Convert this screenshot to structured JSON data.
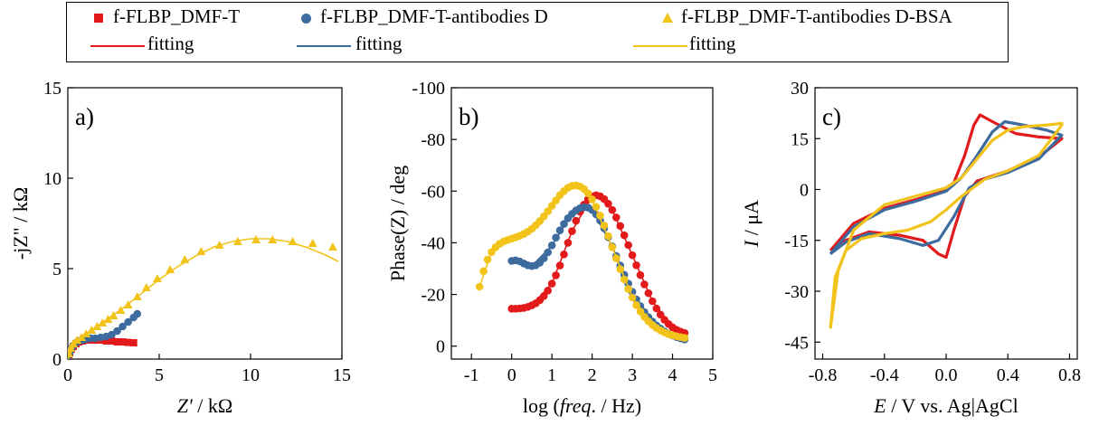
{
  "legend": {
    "entries": [
      {
        "label": "f-FLBP_DMF-T",
        "marker": "square",
        "color": "#e31a1c"
      },
      {
        "label": "f-FLBP_DMF-T-antibodies D",
        "marker": "circle",
        "color": "#3d6b9e"
      },
      {
        "label": "f-FLBP_DMF-T-antibodies D-BSA",
        "marker": "triangle",
        "color": "#f2c41b"
      }
    ],
    "fit_label": "fitting"
  },
  "colors": {
    "red": "#e31a1c",
    "blue": "#3d6b9e",
    "yellow": "#f2c41b"
  },
  "chart_data": [
    {
      "type": "scatter",
      "panel": "a)",
      "xlabel": "Z' / kΩ",
      "ylabel": "-jZ\" / kΩ",
      "xlim": [
        0,
        15
      ],
      "ylim": [
        0,
        15
      ],
      "xticks": [
        "0",
        "5",
        "10",
        "15"
      ],
      "yticks": [
        "0",
        "5",
        "10",
        "15"
      ],
      "series": [
        {
          "name": "f-FLBP_DMF-T",
          "color": "red",
          "marker": "square",
          "x": [
            0.05,
            0.1,
            0.2,
            0.3,
            0.45,
            0.6,
            0.8,
            1.0,
            1.25,
            1.5,
            1.8,
            2.1,
            2.4,
            2.7,
            3.0,
            3.3,
            3.6
          ],
          "y": [
            0.15,
            0.35,
            0.55,
            0.7,
            0.85,
            0.95,
            1.0,
            1.05,
            1.05,
            1.05,
            1.05,
            1.0,
            1.0,
            0.95,
            0.95,
            0.92,
            0.9
          ],
          "fit_x": [
            0,
            0.3,
            0.6,
            1.0,
            1.5,
            2.0,
            2.5,
            3.0,
            3.6
          ],
          "fit_y": [
            0,
            0.7,
            0.95,
            1.05,
            1.05,
            1.0,
            0.97,
            0.93,
            0.9
          ]
        },
        {
          "name": "f-FLBP_DMF-T-antibodies D",
          "color": "blue",
          "marker": "circle",
          "x": [
            0.05,
            0.12,
            0.2,
            0.3,
            0.45,
            0.6,
            0.8,
            1.0,
            1.25,
            1.5,
            1.8,
            2.1,
            2.4,
            2.7,
            3.0,
            3.3,
            3.6,
            3.8
          ],
          "y": [
            0.2,
            0.4,
            0.6,
            0.75,
            0.9,
            1.0,
            1.05,
            1.1,
            1.15,
            1.15,
            1.2,
            1.25,
            1.35,
            1.55,
            1.8,
            2.05,
            2.3,
            2.5
          ],
          "fit_x": [
            0,
            0.3,
            0.8,
            1.5,
            2.1,
            2.7,
            3.3,
            3.8
          ],
          "fit_y": [
            0,
            0.75,
            1.05,
            1.15,
            1.25,
            1.55,
            2.05,
            2.5
          ]
        },
        {
          "name": "f-FLBP_DMF-T-antibodies D-BSA",
          "color": "yellow",
          "marker": "triangle",
          "x": [
            0.05,
            0.15,
            0.3,
            0.5,
            0.75,
            1.0,
            1.3,
            1.6,
            1.9,
            2.2,
            2.5,
            2.9,
            3.3,
            3.8,
            4.3,
            4.9,
            5.6,
            6.4,
            7.3,
            8.3,
            9.3,
            10.3,
            11.2,
            12.3,
            13.4,
            14.5
          ],
          "y": [
            0.3,
            0.6,
            0.85,
            1.05,
            1.2,
            1.4,
            1.6,
            1.8,
            2.0,
            2.2,
            2.4,
            2.7,
            3.0,
            3.45,
            3.95,
            4.45,
            4.95,
            5.5,
            5.95,
            6.3,
            6.5,
            6.6,
            6.6,
            6.5,
            6.4,
            6.2
          ],
          "fit_x": [
            0,
            0.5,
            1.0,
            2.0,
            3.0,
            4.0,
            5.0,
            6.0,
            7.0,
            8.0,
            9.0,
            10.0,
            11.0,
            12.0,
            13.0,
            14.0,
            14.8
          ],
          "fit_y": [
            0,
            1.0,
            1.4,
            2.1,
            2.8,
            3.6,
            4.4,
            5.1,
            5.7,
            6.2,
            6.5,
            6.65,
            6.65,
            6.5,
            6.2,
            5.8,
            5.4
          ]
        }
      ]
    },
    {
      "type": "scatter",
      "panel": "b)",
      "xlabel_parts": [
        "log (",
        "freq",
        ". / Hz)"
      ],
      "ylabel": "Phase(Z) / deg",
      "xlim": [
        -1.5,
        5
      ],
      "ylim": [
        5,
        -100
      ],
      "xticks": [
        "-1",
        "0",
        "1",
        "2",
        "3",
        "4",
        "5"
      ],
      "yticks": [
        "0",
        "-20",
        "-40",
        "-60",
        "-80",
        "-100"
      ],
      "series": [
        {
          "name": "f-FLBP_DMF-T",
          "color": "red",
          "marker": "circle",
          "x": [
            0.0,
            0.1,
            0.2,
            0.3,
            0.4,
            0.5,
            0.6,
            0.7,
            0.8,
            0.9,
            1.0,
            1.1,
            1.2,
            1.3,
            1.4,
            1.5,
            1.6,
            1.7,
            1.8,
            1.9,
            2.0,
            2.1,
            2.2,
            2.3,
            2.4,
            2.5,
            2.6,
            2.7,
            2.8,
            2.9,
            3.0,
            3.1,
            3.2,
            3.3,
            3.4,
            3.5,
            3.6,
            3.7,
            3.8,
            3.9,
            4.0,
            4.1,
            4.2,
            4.3
          ],
          "y": [
            -14.5,
            -14.5,
            -14.6,
            -14.8,
            -15.2,
            -15.8,
            -16.6,
            -17.8,
            -19.4,
            -21.5,
            -24.2,
            -27.4,
            -31.2,
            -35.5,
            -40.0,
            -44.5,
            -48.5,
            -52.0,
            -54.8,
            -56.8,
            -58.0,
            -58.4,
            -58.0,
            -56.9,
            -55.1,
            -52.7,
            -49.8,
            -46.5,
            -42.9,
            -39.1,
            -35.2,
            -31.3,
            -27.5,
            -23.9,
            -20.5,
            -17.4,
            -14.6,
            -12.2,
            -10.2,
            -8.6,
            -7.3,
            -6.3,
            -5.6,
            -5.1
          ],
          "fit_x": [
            0.0,
            0.5,
            1.0,
            1.5,
            2.0,
            2.2,
            2.5,
            3.0,
            3.5,
            4.0,
            4.3
          ],
          "fit_y": [
            -14.5,
            -15.8,
            -24.2,
            -44.5,
            -58.0,
            -58.4,
            -52.7,
            -35.2,
            -17.4,
            -7.3,
            -5.1
          ]
        },
        {
          "name": "f-FLBP_DMF-T-antibodies D",
          "color": "blue",
          "marker": "circle",
          "x": [
            0.0,
            0.1,
            0.2,
            0.3,
            0.4,
            0.5,
            0.6,
            0.7,
            0.8,
            0.9,
            1.0,
            1.1,
            1.2,
            1.3,
            1.4,
            1.5,
            1.6,
            1.7,
            1.8,
            1.9,
            2.0,
            2.1,
            2.2,
            2.3,
            2.4,
            2.5,
            2.6,
            2.7,
            2.8,
            2.9,
            3.0,
            3.1,
            3.2,
            3.3,
            3.4,
            3.5,
            3.6,
            3.7,
            3.8,
            3.9,
            4.0,
            4.1,
            4.2,
            4.3
          ],
          "y": [
            -33.0,
            -33.2,
            -32.8,
            -32.0,
            -31.3,
            -31.0,
            -31.3,
            -32.3,
            -34.0,
            -36.3,
            -39.0,
            -42.0,
            -44.8,
            -47.3,
            -49.5,
            -51.2,
            -52.5,
            -53.4,
            -53.8,
            -53.6,
            -52.7,
            -51.0,
            -48.6,
            -45.6,
            -42.2,
            -38.6,
            -34.9,
            -31.2,
            -27.6,
            -24.2,
            -21.0,
            -18.1,
            -15.5,
            -13.2,
            -11.2,
            -9.5,
            -8.0,
            -6.8,
            -5.7,
            -4.8,
            -4.1,
            -3.5,
            -3.0,
            -2.6
          ],
          "fit_x": [
            0.0,
            0.5,
            1.0,
            1.5,
            1.8,
            2.0,
            2.5,
            3.0,
            3.5,
            4.0,
            4.3
          ],
          "fit_y": [
            -33.0,
            -31.0,
            -39.0,
            -51.2,
            -53.8,
            -52.7,
            -38.6,
            -21.0,
            -9.5,
            -4.1,
            -2.6
          ]
        },
        {
          "name": "f-FLBP_DMF-T-antibodies D-BSA",
          "color": "yellow",
          "marker": "circle",
          "x": [
            -0.8,
            -0.7,
            -0.6,
            -0.5,
            -0.4,
            -0.3,
            -0.2,
            -0.1,
            0.0,
            0.1,
            0.2,
            0.3,
            0.4,
            0.5,
            0.6,
            0.7,
            0.8,
            0.9,
            1.0,
            1.1,
            1.2,
            1.3,
            1.4,
            1.5,
            1.6,
            1.7,
            1.8,
            1.9,
            2.0,
            2.1,
            2.2,
            2.3,
            2.4,
            2.5,
            2.6,
            2.7,
            2.8,
            2.9,
            3.0,
            3.1,
            3.2,
            3.3,
            3.4,
            3.5,
            3.6,
            3.7,
            3.8,
            3.9,
            4.0,
            4.1,
            4.2,
            4.3
          ],
          "y": [
            -23.0,
            -29.0,
            -33.5,
            -36.4,
            -38.3,
            -39.6,
            -40.5,
            -41.1,
            -41.6,
            -42.1,
            -42.7,
            -43.4,
            -44.3,
            -45.4,
            -46.8,
            -48.4,
            -50.2,
            -52.2,
            -54.3,
            -56.4,
            -58.4,
            -60.0,
            -61.3,
            -62.0,
            -62.2,
            -61.8,
            -60.8,
            -59.1,
            -56.8,
            -53.9,
            -50.5,
            -46.7,
            -42.6,
            -38.3,
            -34.0,
            -29.8,
            -25.8,
            -22.1,
            -18.8,
            -15.9,
            -13.4,
            -11.3,
            -9.6,
            -8.2,
            -7.0,
            -6.1,
            -5.3,
            -4.7,
            -4.2,
            -3.8,
            -3.5,
            -3.2
          ],
          "fit_x": [
            -0.8,
            -0.5,
            0.0,
            0.5,
            1.0,
            1.5,
            1.6,
            2.0,
            2.5,
            3.0,
            3.5,
            4.0,
            4.3
          ],
          "fit_y": [
            -23.0,
            -36.4,
            -41.6,
            -45.4,
            -54.3,
            -62.0,
            -62.2,
            -56.8,
            -38.3,
            -18.8,
            -8.2,
            -4.2,
            -3.2
          ]
        }
      ]
    },
    {
      "type": "line",
      "panel": "c)",
      "xlabel_parts": [
        "E",
        " / V vs. Ag|AgCl"
      ],
      "ylabel_parts": [
        "I",
        " / μA"
      ],
      "xlim": [
        -0.85,
        0.85
      ],
      "ylim": [
        -50,
        30
      ],
      "xticks": [
        "-0.8",
        "-0.4",
        "0.0",
        "0.4",
        "0.8"
      ],
      "yticks": [
        "30",
        "15",
        "0",
        "-15",
        "-30",
        "-45"
      ],
      "series": [
        {
          "name": "f-FLBP_DMF-T",
          "color": "red",
          "x": [
            -0.75,
            -0.6,
            -0.4,
            -0.2,
            -0.05,
            0.05,
            0.12,
            0.18,
            0.22,
            0.3,
            0.45,
            0.6,
            0.75,
            0.75,
            0.6,
            0.4,
            0.3,
            0.2,
            0.12,
            0.05,
            0.0,
            -0.05,
            -0.15,
            -0.3,
            -0.5,
            -0.65,
            -0.75
          ],
          "y": [
            -18.0,
            -10.0,
            -5.5,
            -3.0,
            -1.0,
            2.0,
            10.0,
            19.0,
            22.0,
            20.0,
            16.5,
            15.5,
            15.0,
            15.0,
            9.5,
            5.5,
            4.0,
            2.5,
            -2.0,
            -12.0,
            -20.0,
            -19.0,
            -15.0,
            -13.5,
            -12.5,
            -15.0,
            -18.0
          ]
        },
        {
          "name": "f-FLBP_DMF-T-antibodies D",
          "color": "blue",
          "x": [
            -0.75,
            -0.6,
            -0.4,
            -0.2,
            0.0,
            0.1,
            0.2,
            0.3,
            0.38,
            0.5,
            0.65,
            0.75,
            0.75,
            0.6,
            0.4,
            0.25,
            0.15,
            0.05,
            -0.05,
            -0.15,
            -0.3,
            -0.5,
            -0.65,
            -0.75
          ],
          "y": [
            -19.0,
            -11.0,
            -6.0,
            -3.5,
            -0.5,
            3.5,
            10.0,
            17.0,
            20.0,
            19.0,
            17.5,
            16.0,
            16.0,
            9.0,
            5.0,
            3.0,
            0.5,
            -8.0,
            -15.0,
            -16.5,
            -14.5,
            -13.0,
            -15.5,
            -19.0
          ]
        },
        {
          "name": "f-FLBP_DMF-T-antibodies D-BSA",
          "color": "yellow",
          "x": [
            -0.75,
            -0.7,
            -0.6,
            -0.4,
            -0.2,
            0.0,
            0.1,
            0.2,
            0.3,
            0.4,
            0.5,
            0.65,
            0.75,
            0.75,
            0.6,
            0.4,
            0.25,
            0.1,
            0.0,
            -0.1,
            -0.25,
            -0.4,
            -0.55,
            -0.65,
            -0.72,
            -0.75
          ],
          "y": [
            -41.0,
            -24.0,
            -12.0,
            -4.5,
            -2.0,
            0.5,
            3.5,
            9.0,
            14.5,
            17.5,
            18.5,
            19.0,
            19.5,
            19.0,
            10.0,
            5.5,
            3.0,
            -2.0,
            -6.0,
            -9.5,
            -12.0,
            -13.0,
            -14.5,
            -18.0,
            -26.0,
            -41.0
          ]
        }
      ]
    }
  ]
}
